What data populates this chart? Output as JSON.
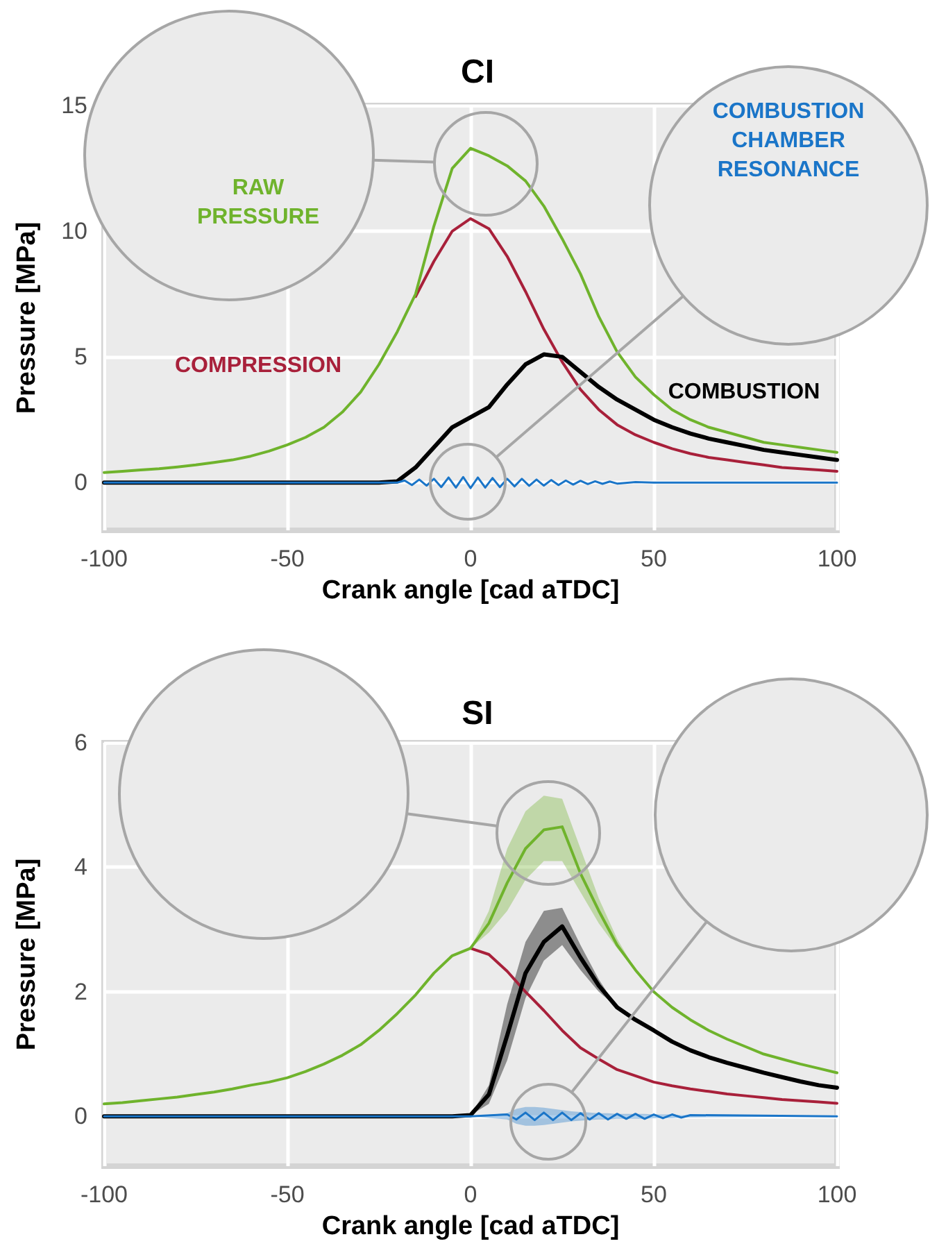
{
  "chart_data": [
    {
      "type": "line",
      "title": "CI",
      "xlabel": "Crank angle [cad aTDC]",
      "ylabel": "Pressure [MPa]",
      "xlim": [
        -100,
        100
      ],
      "xticks": [
        -100,
        -50,
        0,
        50,
        100
      ],
      "ylim": [
        -1.9,
        15
      ],
      "yticks": [
        0,
        5,
        10,
        15
      ],
      "grid": true,
      "legend": false,
      "marker": "none",
      "line_style": "solid",
      "x": [
        -100,
        -95,
        -90,
        -85,
        -80,
        -75,
        -70,
        -65,
        -60,
        -55,
        -50,
        -45,
        -40,
        -35,
        -30,
        -25,
        -20,
        -15,
        -10,
        -5,
        0,
        5,
        10,
        15,
        20,
        25,
        30,
        35,
        40,
        45,
        50,
        55,
        60,
        65,
        70,
        75,
        80,
        85,
        90,
        95,
        100
      ],
      "series": [
        {
          "name": "COMPRESSION",
          "color": "#a8203a",
          "values": [
            null,
            null,
            null,
            null,
            null,
            null,
            null,
            null,
            null,
            null,
            null,
            null,
            null,
            null,
            null,
            null,
            null,
            7.4,
            8.8,
            10.0,
            10.5,
            10.1,
            9.0,
            7.6,
            6.1,
            4.8,
            3.7,
            2.9,
            2.3,
            1.9,
            1.6,
            1.35,
            1.15,
            1.0,
            0.9,
            0.8,
            0.7,
            0.6,
            0.55,
            0.5,
            0.45
          ]
        },
        {
          "name": "RAW PRESSURE",
          "color": "#6fb32c",
          "values": [
            0.4,
            0.45,
            0.5,
            0.55,
            0.62,
            0.7,
            0.8,
            0.9,
            1.05,
            1.25,
            1.5,
            1.8,
            2.2,
            2.8,
            3.6,
            4.7,
            6.0,
            7.5,
            10.2,
            12.5,
            13.3,
            13.0,
            12.6,
            12.0,
            11.0,
            9.7,
            8.3,
            6.6,
            5.2,
            4.2,
            3.5,
            2.9,
            2.5,
            2.2,
            2.0,
            1.8,
            1.6,
            1.5,
            1.4,
            1.3,
            1.2
          ]
        },
        {
          "name": "COMBUSTION",
          "color": "#000000",
          "values": [
            0,
            0,
            0,
            0,
            0,
            0,
            0,
            0,
            0,
            0,
            0,
            0,
            0,
            0,
            0,
            0,
            0.05,
            0.6,
            1.4,
            2.2,
            2.6,
            3.0,
            3.9,
            4.7,
            5.1,
            5.0,
            4.4,
            3.8,
            3.3,
            2.9,
            2.5,
            2.2,
            1.95,
            1.75,
            1.6,
            1.45,
            1.3,
            1.2,
            1.1,
            1.0,
            0.9
          ]
        },
        {
          "name": "COMBUSTION CHAMBER RESONANCE",
          "color": "#1a75c8",
          "x": [
            -100,
            -20,
            -18,
            -16,
            -14,
            -12,
            -10,
            -8,
            -6,
            -4,
            -2,
            0,
            2,
            4,
            6,
            8,
            10,
            12,
            14,
            16,
            18,
            20,
            22,
            24,
            26,
            28,
            30,
            32,
            34,
            36,
            38,
            40,
            45,
            50,
            100
          ],
          "values": [
            0,
            0,
            0.08,
            -0.1,
            0.12,
            -0.12,
            0.15,
            -0.18,
            0.2,
            -0.2,
            0.22,
            -0.22,
            0.2,
            -0.2,
            0.18,
            -0.18,
            0.15,
            -0.15,
            0.15,
            -0.13,
            0.12,
            -0.12,
            0.1,
            -0.1,
            0.08,
            -0.08,
            0.07,
            -0.06,
            0.05,
            -0.05,
            0.04,
            -0.04,
            0.02,
            0,
            0
          ]
        }
      ]
    },
    {
      "type": "line",
      "title": "SI",
      "xlabel": "Crank angle [cad aTDC]",
      "ylabel": "Pressure [MPa]",
      "xlim": [
        -100,
        100
      ],
      "xticks": [
        -100,
        -50,
        0,
        50,
        100
      ],
      "ylim": [
        -0.8,
        6
      ],
      "yticks": [
        0,
        2,
        4,
        6
      ],
      "grid": true,
      "legend": false,
      "marker": "none",
      "line_style": "solid",
      "x": [
        -100,
        -95,
        -90,
        -85,
        -80,
        -75,
        -70,
        -65,
        -60,
        -55,
        -50,
        -45,
        -40,
        -35,
        -30,
        -25,
        -20,
        -15,
        -10,
        -5,
        0,
        5,
        10,
        15,
        20,
        25,
        30,
        35,
        40,
        45,
        50,
        55,
        60,
        65,
        70,
        75,
        80,
        85,
        90,
        95,
        100
      ],
      "series": [
        {
          "color": "#a8203a",
          "values": [
            null,
            null,
            null,
            null,
            null,
            null,
            null,
            null,
            null,
            null,
            null,
            null,
            null,
            null,
            null,
            null,
            null,
            null,
            null,
            null,
            2.7,
            2.6,
            2.33,
            2.0,
            1.7,
            1.38,
            1.1,
            0.92,
            0.75,
            0.65,
            0.55,
            0.49,
            0.44,
            0.4,
            0.36,
            0.33,
            0.3,
            0.27,
            0.25,
            0.23,
            0.21
          ]
        },
        {
          "color": "#6fb32c",
          "values": [
            0.2,
            0.22,
            0.25,
            0.28,
            0.31,
            0.35,
            0.39,
            0.44,
            0.5,
            0.55,
            0.62,
            0.72,
            0.84,
            0.98,
            1.15,
            1.38,
            1.65,
            1.95,
            2.3,
            2.58,
            2.7,
            3.1,
            3.75,
            4.3,
            4.6,
            4.65,
            3.9,
            3.3,
            2.75,
            2.35,
            2.0,
            1.75,
            1.55,
            1.38,
            1.24,
            1.12,
            1.0,
            0.92,
            0.84,
            0.77,
            0.7
          ],
          "lower": [
            0.2,
            0.22,
            0.25,
            0.28,
            0.31,
            0.35,
            0.39,
            0.44,
            0.5,
            0.55,
            0.62,
            0.72,
            0.84,
            0.98,
            1.15,
            1.38,
            1.65,
            1.95,
            2.3,
            2.58,
            2.7,
            2.95,
            3.3,
            3.8,
            4.1,
            4.1,
            3.6,
            3.1,
            2.7,
            2.35,
            2.0,
            1.75,
            1.55,
            1.38,
            1.24,
            1.12,
            1.0,
            0.92,
            0.84,
            0.77,
            0.7
          ],
          "upper": [
            0.2,
            0.22,
            0.25,
            0.28,
            0.31,
            0.35,
            0.39,
            0.44,
            0.5,
            0.55,
            0.62,
            0.72,
            0.84,
            0.98,
            1.15,
            1.38,
            1.65,
            1.95,
            2.3,
            2.58,
            2.7,
            3.3,
            4.3,
            4.9,
            5.15,
            5.1,
            4.3,
            3.5,
            2.85,
            2.35,
            2.0,
            1.75,
            1.55,
            1.38,
            1.24,
            1.12,
            1.0,
            0.92,
            0.84,
            0.77,
            0.7
          ]
        },
        {
          "color": "#000000",
          "values": [
            0,
            0,
            0,
            0,
            0,
            0,
            0,
            0,
            0,
            0,
            0,
            0,
            0,
            0,
            0,
            0,
            0,
            0,
            0,
            0,
            0.02,
            0.35,
            1.3,
            2.3,
            2.8,
            3.05,
            2.55,
            2.1,
            1.75,
            1.55,
            1.38,
            1.2,
            1.06,
            0.95,
            0.86,
            0.78,
            0.7,
            0.63,
            0.56,
            0.5,
            0.46
          ],
          "lower": [
            0,
            0,
            0,
            0,
            0,
            0,
            0,
            0,
            0,
            0,
            0,
            0,
            0,
            0,
            0,
            0,
            0,
            0,
            0,
            0,
            0.02,
            0.2,
            0.9,
            1.9,
            2.5,
            2.75,
            2.35,
            2.0,
            1.75,
            1.55,
            1.38,
            1.2,
            1.06,
            0.95,
            0.86,
            0.78,
            0.7,
            0.63,
            0.56,
            0.5,
            0.46
          ],
          "upper": [
            0,
            0,
            0,
            0,
            0,
            0,
            0,
            0,
            0,
            0,
            0,
            0,
            0,
            0,
            0,
            0,
            0,
            0,
            0,
            0,
            0.02,
            0.5,
            1.8,
            2.8,
            3.3,
            3.35,
            2.75,
            2.2,
            1.75,
            1.55,
            1.38,
            1.2,
            1.06,
            0.95,
            0.86,
            0.78,
            0.7,
            0.63,
            0.56,
            0.5,
            0.46
          ]
        },
        {
          "color": "#1a75c8",
          "x": [
            -100,
            0,
            10,
            12.5,
            15,
            17.5,
            20,
            22.5,
            25,
            27.5,
            30,
            32.5,
            35,
            37.5,
            40,
            42.5,
            45,
            47.5,
            50,
            52.5,
            55,
            57.5,
            60,
            100
          ],
          "values": [
            0,
            0,
            0.03,
            -0.05,
            0.06,
            -0.06,
            0.06,
            -0.06,
            0.06,
            -0.06,
            0.05,
            -0.05,
            0.05,
            -0.05,
            0.04,
            -0.04,
            0.04,
            -0.04,
            0.03,
            -0.03,
            0.03,
            -0.02,
            0.02,
            0
          ],
          "lower": [
            0,
            0,
            -0.05,
            -0.12,
            -0.15,
            -0.15,
            -0.14,
            -0.12,
            -0.1,
            -0.08,
            -0.07,
            -0.06,
            -0.05,
            -0.05,
            -0.04,
            -0.04,
            -0.04,
            -0.04,
            -0.03,
            -0.03,
            -0.03,
            -0.02,
            -0.02,
            0
          ],
          "upper": [
            0,
            0,
            0.05,
            0.12,
            0.15,
            0.15,
            0.14,
            0.12,
            0.1,
            0.08,
            0.07,
            0.06,
            0.05,
            0.05,
            0.04,
            0.04,
            0.04,
            0.04,
            0.03,
            0.03,
            0.03,
            0.02,
            0.02,
            0
          ]
        }
      ]
    }
  ]
}
